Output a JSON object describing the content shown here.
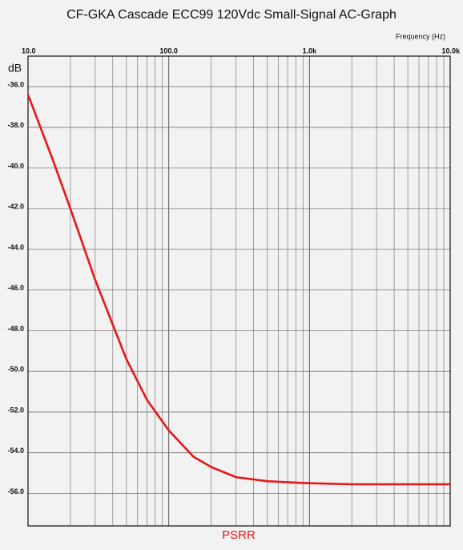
{
  "chart_data": {
    "type": "line",
    "title": "CF-GKA Cascade ECC99 120Vdc Small-Signal AC-Graph",
    "x_label": "Frequency  (Hz)",
    "y_label": "dB",
    "x_scale": "log",
    "grid": true,
    "xlim": [
      10,
      10000
    ],
    "ylim": [
      -57.6,
      -34.5
    ],
    "xticks": [
      {
        "value": 10,
        "label": "10.0"
      },
      {
        "value": 100,
        "label": "100.0"
      },
      {
        "value": 1000,
        "label": "1.0k"
      },
      {
        "value": 10000,
        "label": "10.0k"
      }
    ],
    "xminorticks": [
      20,
      30,
      40,
      50,
      60,
      70,
      80,
      90,
      200,
      300,
      400,
      500,
      600,
      700,
      800,
      900,
      2000,
      3000,
      4000,
      5000,
      6000,
      7000,
      8000,
      9000
    ],
    "yticks": [
      {
        "value": -36,
        "label": "-36.0"
      },
      {
        "value": -38,
        "label": "-38.0"
      },
      {
        "value": -40,
        "label": "-40.0"
      },
      {
        "value": -42,
        "label": "-42.0"
      },
      {
        "value": -44,
        "label": "-44.0"
      },
      {
        "value": -46,
        "label": "-46.0"
      },
      {
        "value": -48,
        "label": "-48.0"
      },
      {
        "value": -50,
        "label": "-50.0"
      },
      {
        "value": -52,
        "label": "-52.0"
      },
      {
        "value": -54,
        "label": "-54.0"
      },
      {
        "value": -56,
        "label": "-56.0"
      }
    ],
    "x": [
      10,
      15,
      20,
      30,
      40,
      50,
      70,
      100,
      150,
      200,
      300,
      500,
      1000,
      2000,
      5000,
      10000
    ],
    "series": [
      {
        "name": "PSRR",
        "color": "#e8161b",
        "values": [
          -36.4,
          -39.6,
          -42.0,
          -45.5,
          -47.7,
          -49.4,
          -51.4,
          -52.9,
          -54.2,
          -54.7,
          -55.2,
          -55.4,
          -55.5,
          -55.55,
          -55.55,
          -55.55
        ]
      }
    ]
  }
}
